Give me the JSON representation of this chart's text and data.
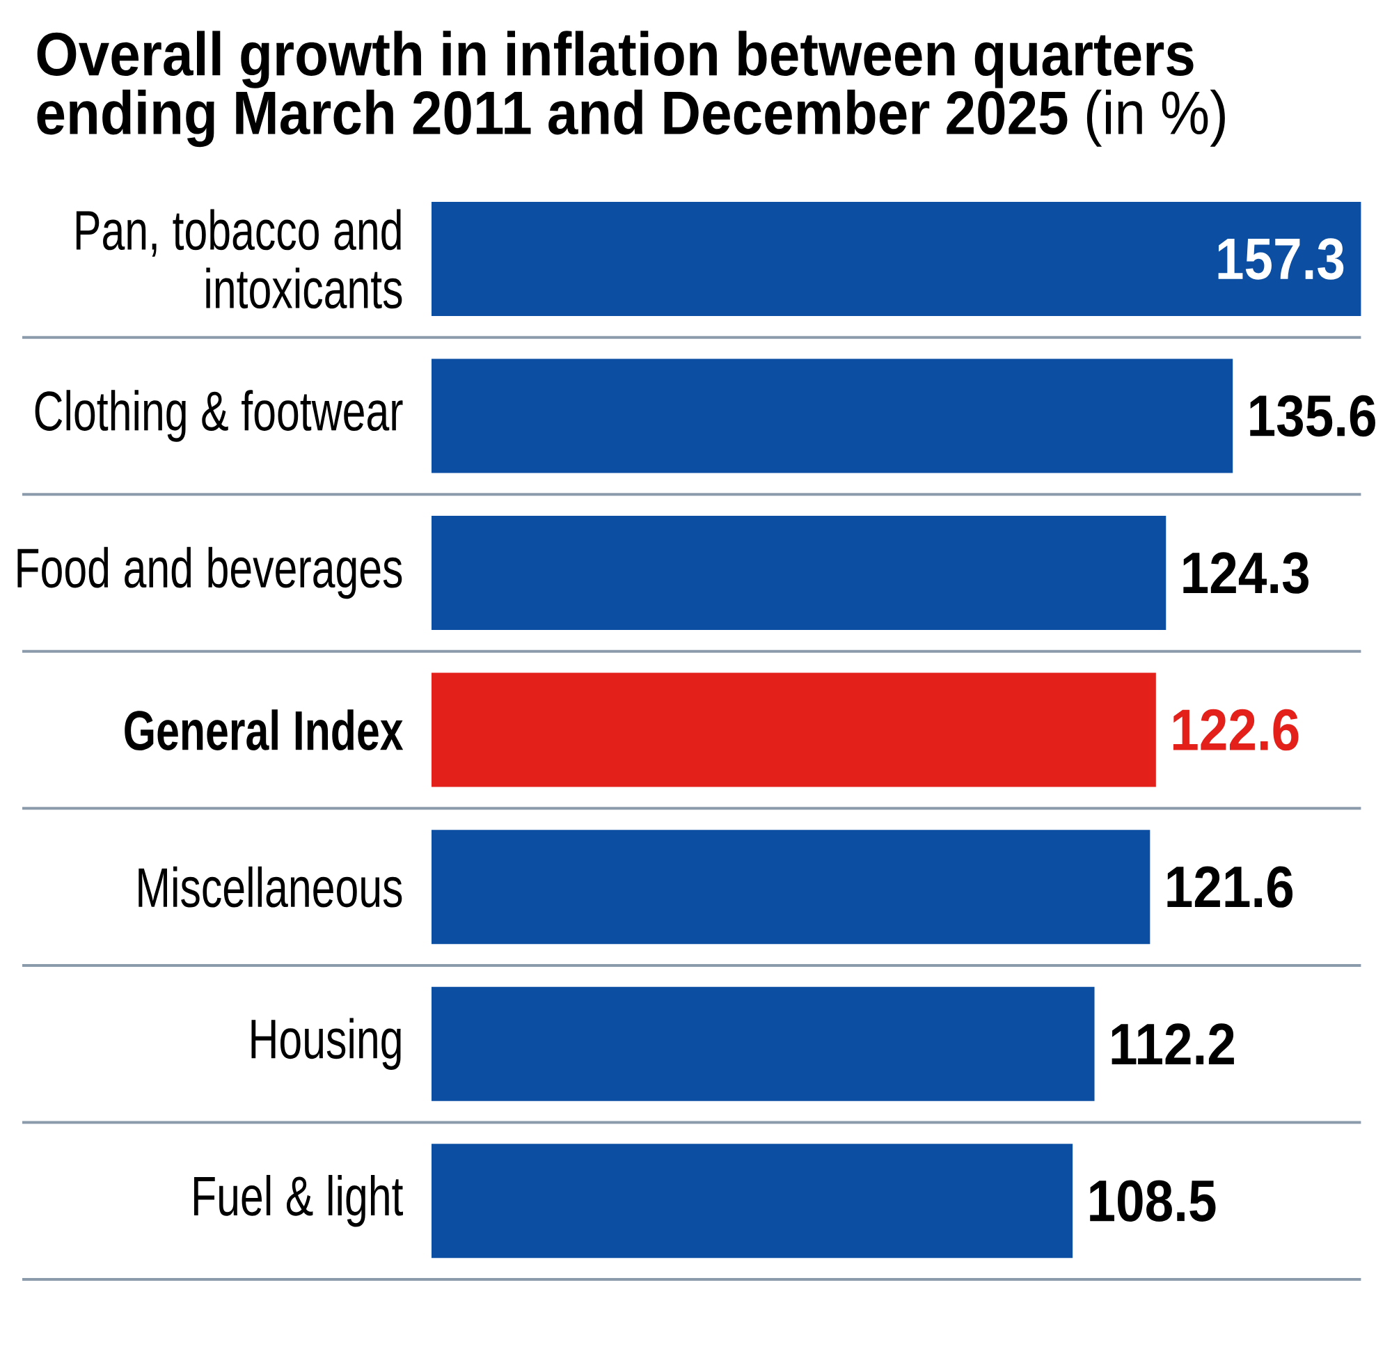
{
  "chart_data": {
    "type": "bar",
    "orientation": "horizontal",
    "title": "**Overall growth in inflation between quarters ending March 2011 and December 2025** (in %)",
    "categories": [
      "Pan, tobacco and intoxicants",
      "Clothing & footwear",
      "Food and beverages",
      "**General Index**",
      "Miscellaneous",
      "Housing",
      "Fuel & light"
    ],
    "values": [
      157.3,
      135.6,
      124.3,
      122.6,
      121.6,
      112.2,
      108.5
    ],
    "color": "#0b4ea2",
    "colors": [
      "#0b4ea2",
      "#0b4ea2",
      "#0b4ea2",
      "#e3211a",
      "#0b4ea2",
      "#0b4ea2",
      "#0b4ea2"
    ],
    "data_labels": true,
    "xlim": [
      0,
      157.3
    ],
    "grid": "y",
    "tick_labels": "y"
  }
}
